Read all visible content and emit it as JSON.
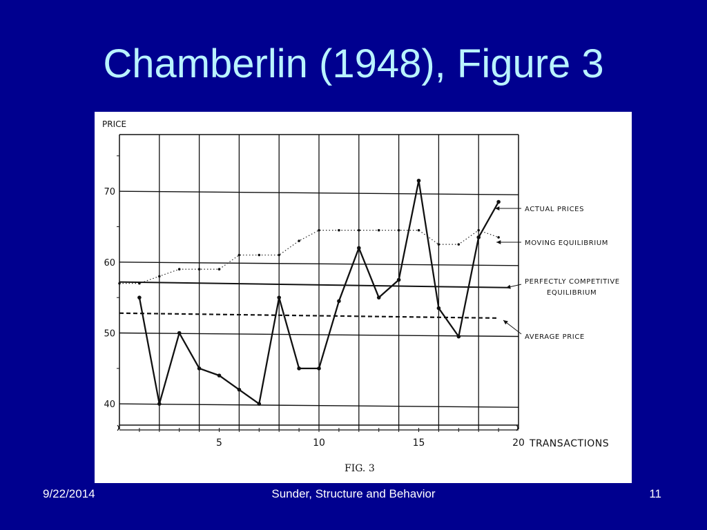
{
  "slide": {
    "title": "Chamberlin (1948), Figure 3",
    "footer_date": "9/22/2014",
    "footer_center": "Sunder, Structure and Behavior",
    "footer_page": "11"
  },
  "chart_data": {
    "type": "line",
    "ylabel": "PRICE",
    "xlabel": "TRANSACTIONS",
    "caption": "FIG. 3",
    "xlim": [
      0,
      20
    ],
    "ylim": [
      37,
      78
    ],
    "y_ticks": [
      40,
      50,
      60,
      70
    ],
    "x_ticks": [
      5,
      10,
      15,
      20
    ],
    "grid": true,
    "series": [
      {
        "name": "ACTUAL PRICES",
        "style": "solid",
        "x": [
          1,
          2,
          3,
          4,
          5,
          6,
          7,
          8,
          9,
          10,
          11,
          12,
          13,
          14,
          15,
          16,
          17,
          18,
          19
        ],
        "y": [
          55,
          40,
          50,
          45,
          44,
          42,
          40,
          55,
          45,
          45,
          54.5,
          62,
          55,
          57.5,
          71.5,
          53.5,
          49.5,
          63.5,
          68.5
        ]
      },
      {
        "name": "MOVING EQUILIBRIUM",
        "style": "dotted",
        "x": [
          0,
          1,
          2,
          3,
          4,
          5,
          6,
          7,
          8,
          9,
          10,
          11,
          12,
          13,
          14,
          15,
          16,
          17,
          18,
          19
        ],
        "y": [
          57,
          57,
          58,
          59,
          59,
          59,
          61,
          61,
          61,
          63,
          64.5,
          64.5,
          64.5,
          64.5,
          64.5,
          64.5,
          62.5,
          62.5,
          64.5,
          63.5
        ]
      },
      {
        "name": "PERFECTLY COMPETITIVE EQUILIBRIUM",
        "style": "solid-thin",
        "x": [
          0,
          19.5
        ],
        "y": [
          57.2,
          56.4
        ]
      },
      {
        "name": "AVERAGE PRICE",
        "style": "dashed",
        "x": [
          0,
          19
        ],
        "y": [
          52.8,
          52.1
        ]
      }
    ],
    "legend_labels": [
      {
        "name": "actual-prices-label",
        "lines": [
          "ACTUAL PRICES"
        ]
      },
      {
        "name": "moving-equilibrium-label",
        "lines": [
          "MOVING EQUILIBRIUM"
        ]
      },
      {
        "name": "competitive-equilibrium-label",
        "lines": [
          "PERFECTLY COMPETITIVE",
          "EQUILIBRIUM"
        ]
      },
      {
        "name": "average-price-label",
        "lines": [
          "AVERAGE PRICE"
        ]
      }
    ]
  }
}
